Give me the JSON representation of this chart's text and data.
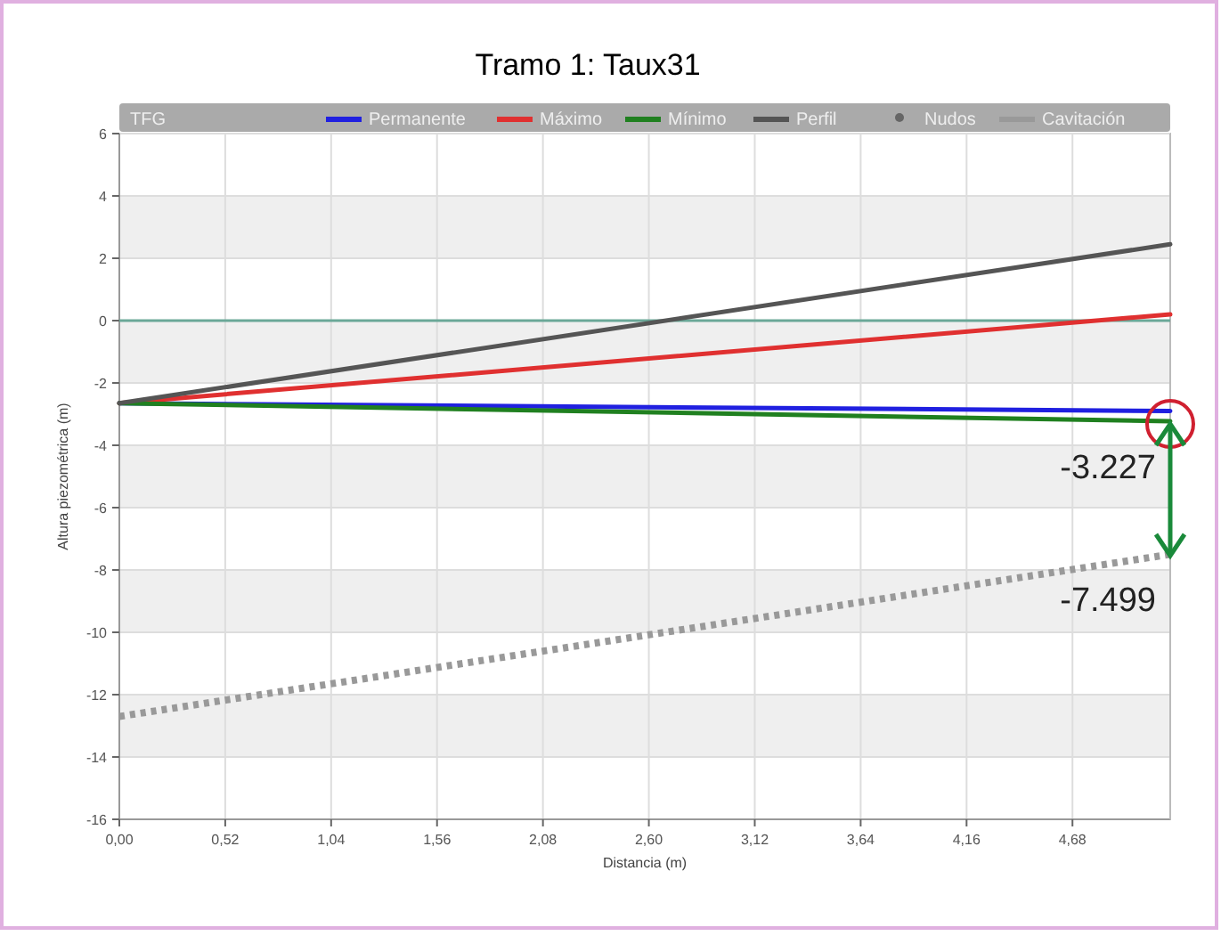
{
  "chart_data": {
    "type": "line",
    "title": "Tramo 1: Taux31",
    "subtitle": "TFG",
    "xlabel": "Distancia (m)",
    "ylabel": "Altura piezométrica (m)",
    "x": [
      0,
      5.16
    ],
    "series": [
      {
        "name": "Permanente",
        "color": "#2020e0",
        "values": [
          -2.65,
          -2.9
        ]
      },
      {
        "name": "Máximo",
        "color": "#e03030",
        "values": [
          -2.65,
          0.2
        ]
      },
      {
        "name": "Mínimo",
        "color": "#208020",
        "values": [
          -2.65,
          -3.23
        ]
      },
      {
        "name": "Perfil",
        "color": "#555555",
        "values": [
          -2.65,
          2.45
        ]
      },
      {
        "name": "Nudos",
        "color": "#666666",
        "values": [
          null,
          null
        ],
        "marker": "circle"
      },
      {
        "name": "Cavitación",
        "color": "#999999",
        "values": [
          -12.7,
          -7.5
        ],
        "line_style": "dotted"
      }
    ],
    "xlim": [
      0,
      5.16
    ],
    "xticks": [
      {
        "value": 0,
        "label": "0,00"
      },
      {
        "value": 0.52,
        "label": "0,52"
      },
      {
        "value": 1.04,
        "label": "1,04"
      },
      {
        "value": 1.56,
        "label": "1,56"
      },
      {
        "value": 2.08,
        "label": "2,08"
      },
      {
        "value": 2.6,
        "label": "2,60"
      },
      {
        "value": 3.12,
        "label": "3,12"
      },
      {
        "value": 3.64,
        "label": "3,64"
      },
      {
        "value": 4.16,
        "label": "4,16"
      },
      {
        "value": 4.68,
        "label": "4,68"
      }
    ],
    "ylim": [
      -16,
      6
    ],
    "yticks": [
      -16,
      -14,
      -12,
      -10,
      -8,
      -6,
      -4,
      -2,
      0,
      2,
      4,
      6
    ],
    "ref_lines": [
      {
        "axis": "y",
        "value": 0,
        "color": "#6aa898"
      }
    ],
    "annotations": [
      {
        "text": "-3.227",
        "x": 5.16,
        "y": -3.227
      },
      {
        "text": "-7.499",
        "x": 5.16,
        "y": -7.499
      }
    ],
    "grid": true,
    "legend": "top right",
    "line_style": "solid"
  }
}
